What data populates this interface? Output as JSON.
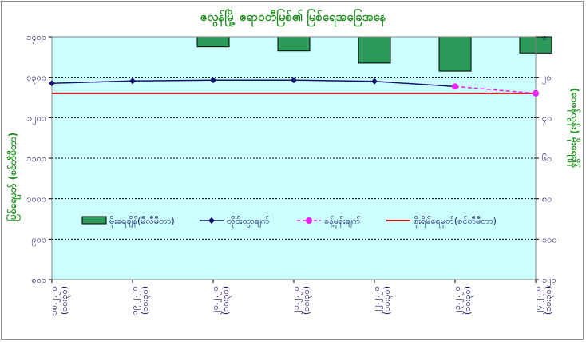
{
  "chart_data": {
    "type": "bar+line",
    "title": "ဇလွန်မြို့ ဧရာဝတီမြစ်၏ မြစ်ရေအခြေအနေ",
    "x_categories": [
      "၁၈.၂.၂၀\n(၁၀း၃၀)",
      "၁၉.၂.၂၀\n(၁၀း၃၀)",
      "၂၀.၂.၂၀\n(၁၀း၃၀)",
      "၂၁.၂.၂၀\n(၁၀း၃၀)",
      "၂၂.၂.၂၀\n(၁၀း၃၀)",
      "၂၃.၂.၂၀\n(၁၀း၃၀)",
      "၂၄.၂.၂၀\n(၁၀း၃၀)"
    ],
    "y_left": {
      "label": "မြစ်ရေမှတ် (စင်တီမီတာ)",
      "min": 800,
      "max": 1400,
      "ticks": [
        800,
        900,
        1000,
        1100,
        1200,
        1300,
        1400
      ],
      "tick_labels": [
        "၈၀၀",
        "၉၀၀",
        "၁၀၀၀",
        "၁၁၀၀",
        "၁၂၀၀",
        "၁၃၀၀",
        "၁၄၀၀"
      ]
    },
    "y_right": {
      "label": "(ဝေဖန်လွန်း) မိုးရေချိန်",
      "min": 0,
      "max": 120,
      "reversed": true,
      "ticks": [
        0,
        20,
        40,
        60,
        80,
        100,
        120
      ],
      "tick_labels": [
        "၀",
        "၂၀",
        "၄၀",
        "၆၀",
        "၈၀",
        "၁၀၀",
        "၁၂၀"
      ]
    },
    "series": [
      {
        "name": "မိုးရေချိန်(မီလီမီတာ)",
        "type": "bar",
        "axis": "right",
        "color": "#2e9a5a",
        "values": [
          0,
          0,
          5,
          7,
          13,
          17,
          8
        ]
      },
      {
        "name": "တိုင်းထွာချက်",
        "type": "line",
        "axis": "left",
        "color": "#13136e",
        "values": [
          1285,
          1291,
          1293,
          1293,
          1290,
          1277,
          null
        ]
      },
      {
        "name": "ခန့်မှန်းချက်",
        "type": "dashed-line",
        "axis": "left",
        "color": "#ee22ee",
        "values": [
          null,
          null,
          null,
          null,
          null,
          1277,
          1260
        ]
      },
      {
        "name": "စိုးရိမ်ရေမှတ်(စင်တီမီတာ)",
        "type": "hline",
        "axis": "left",
        "color": "#cc1111",
        "values": [
          1260,
          1260,
          1260,
          1260,
          1260,
          1260,
          1260
        ]
      }
    ],
    "grid": true,
    "legend_position": "inside-center"
  }
}
